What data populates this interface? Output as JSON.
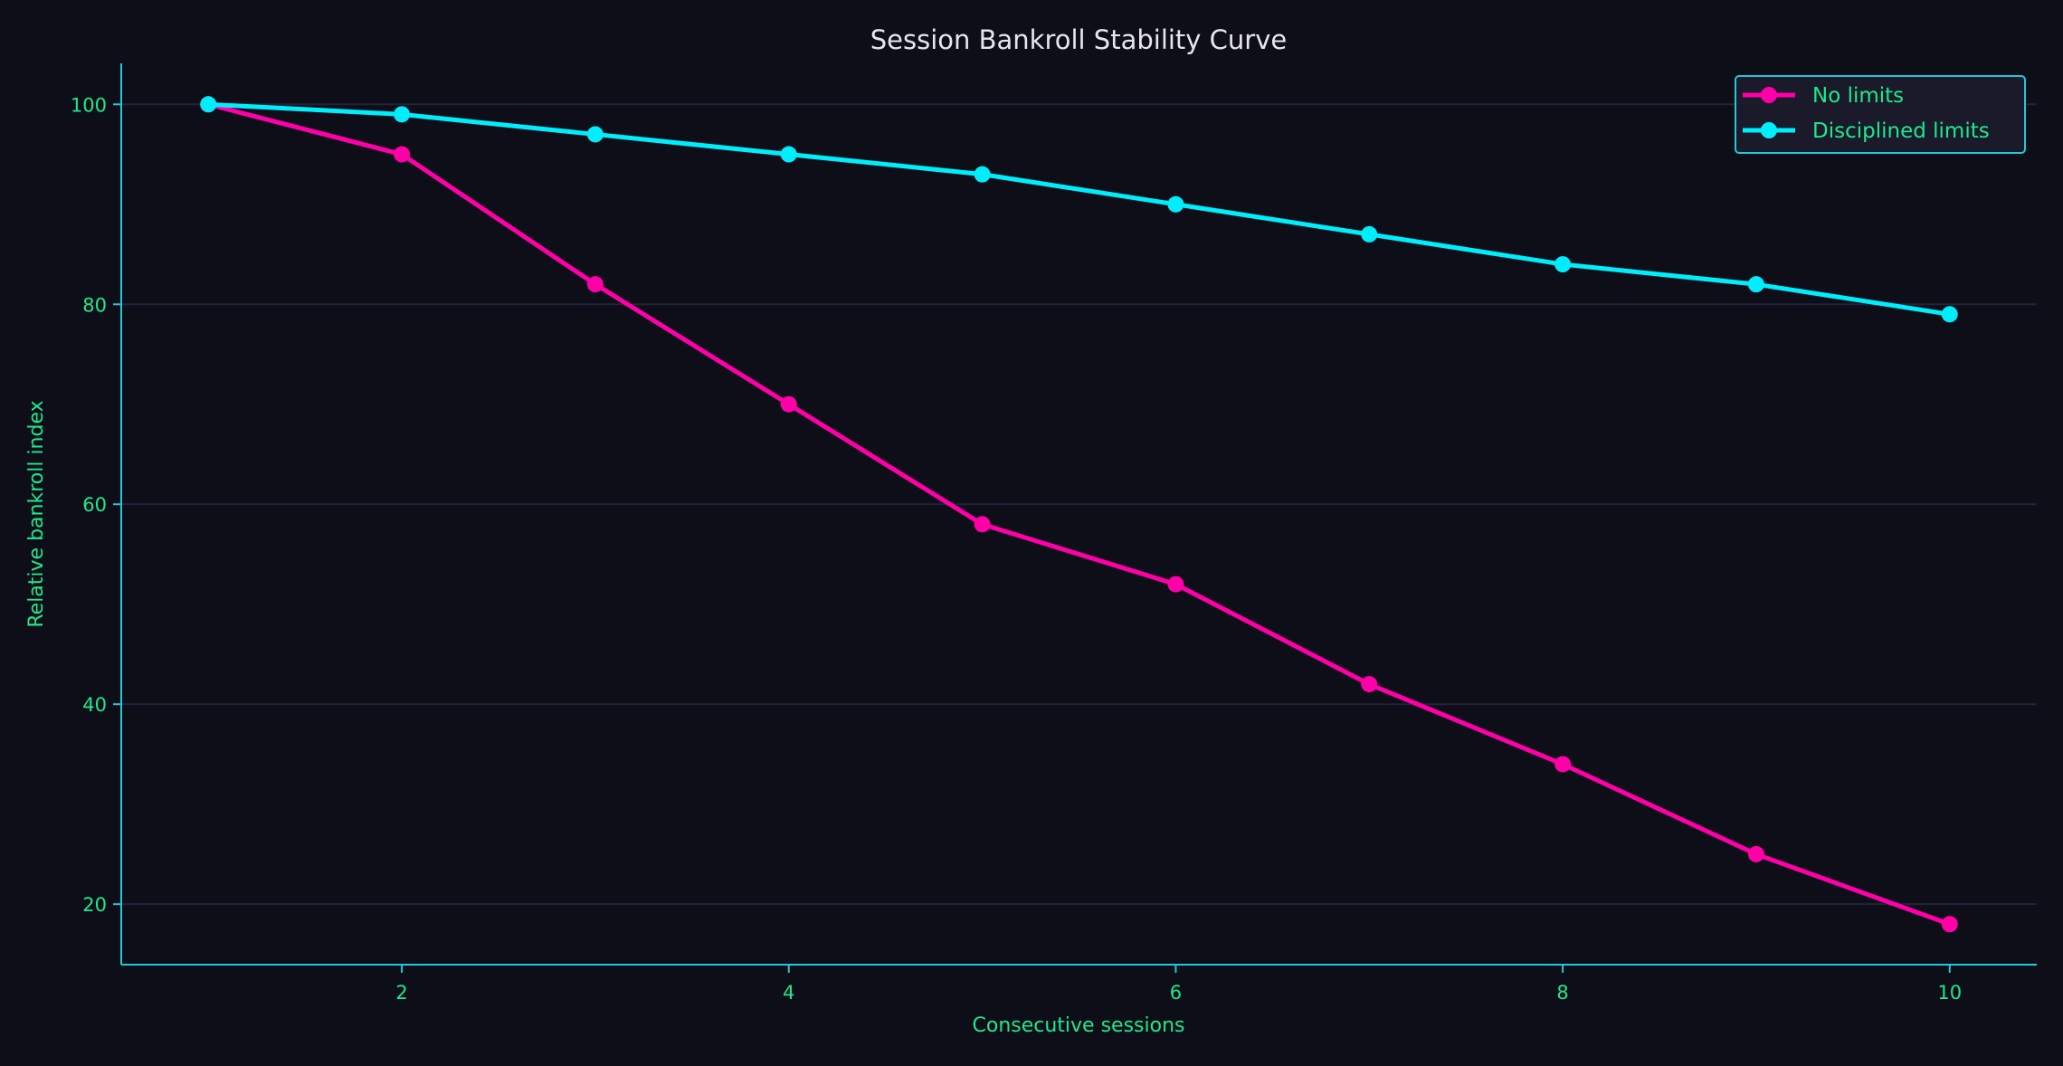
{
  "chart_data": {
    "type": "line",
    "title": "Session Bankroll Stability Curve",
    "xlabel": "Consecutive sessions",
    "ylabel": "Relative bankroll index",
    "x": [
      1,
      2,
      3,
      4,
      5,
      6,
      7,
      8,
      9,
      10
    ],
    "xlim": [
      0.55,
      10.45
    ],
    "ylim": [
      13.95,
      104.1
    ],
    "xticks": [
      2,
      4,
      6,
      8,
      10
    ],
    "yticks": [
      20,
      40,
      60,
      80,
      100
    ],
    "grid": "horizontal",
    "legend_placement": "top-right",
    "series": [
      {
        "name": "No limits",
        "color": "#ff00a8",
        "values": [
          100,
          95,
          82,
          70,
          58,
          52,
          42,
          34,
          25,
          18
        ]
      },
      {
        "name": "Disciplined limits",
        "color": "#00eefc",
        "values": [
          100,
          99,
          97,
          95,
          93,
          90,
          87,
          84,
          82,
          79
        ]
      }
    ],
    "colors": {
      "background": "#0d0e18",
      "axis": "#22c8d8",
      "text": "#1fe88c",
      "grid": "#23223a"
    }
  }
}
